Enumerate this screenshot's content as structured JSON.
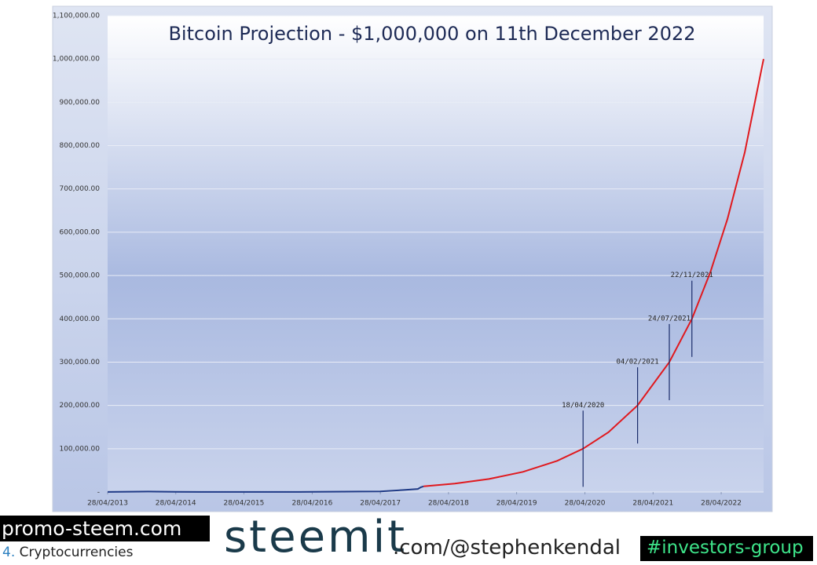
{
  "chart_data": {
    "type": "line",
    "title": "Bitcoin Projection  - $1,000,000 on 11th December 2022",
    "xlim": [
      "2013-04-28",
      "2022-12-11"
    ],
    "xticks": [
      {
        "value": "2013-04-28",
        "label": "28/04/2013"
      },
      {
        "value": "2014-04-28",
        "label": "28/04/2014"
      },
      {
        "value": "2015-04-28",
        "label": "28/04/2015"
      },
      {
        "value": "2016-04-28",
        "label": "28/04/2016"
      },
      {
        "value": "2017-04-28",
        "label": "28/04/2017"
      },
      {
        "value": "2018-04-28",
        "label": "28/04/2018"
      },
      {
        "value": "2019-04-28",
        "label": "28/04/2019"
      },
      {
        "value": "2020-04-28",
        "label": "28/04/2020"
      },
      {
        "value": "2021-04-28",
        "label": "28/04/2021"
      },
      {
        "value": "2022-04-28",
        "label": "28/04/2022"
      }
    ],
    "ylim": [
      0,
      1100000
    ],
    "yticks": [
      {
        "value": 0,
        "label": "-"
      },
      {
        "value": 100000,
        "label": "100,000.00"
      },
      {
        "value": 200000,
        "label": "200,000.00"
      },
      {
        "value": 300000,
        "label": "300,000.00"
      },
      {
        "value": 400000,
        "label": "400,000.00"
      },
      {
        "value": 500000,
        "label": "500,000.00"
      },
      {
        "value": 600000,
        "label": "600,000.00"
      },
      {
        "value": 700000,
        "label": "700,000.00"
      },
      {
        "value": 800000,
        "label": "800,000.00"
      },
      {
        "value": 900000,
        "label": "900,000.00"
      },
      {
        "value": 1000000,
        "label": "1,000,000.00"
      },
      {
        "value": 1100000,
        "label": "1,100,000.00"
      }
    ],
    "grid": true,
    "series": [
      {
        "color": "#1f3a86",
        "x": [
          "2013-04-28",
          "2013-12-01",
          "2014-04-28",
          "2015-04-28",
          "2016-04-28",
          "2017-01-01",
          "2017-04-28",
          "2017-09-01",
          "2017-11-15",
          "2017-12-01",
          "2017-12-15"
        ],
        "values": [
          130,
          1000,
          450,
          230,
          450,
          1000,
          1300,
          4700,
          7000,
          11000,
          13100
        ]
      },
      {
        "color": "#e0191e",
        "x": [
          "2017-12-15",
          "2018-06-01",
          "2018-12-01",
          "2019-06-01",
          "2019-12-01",
          "2020-04-18",
          "2020-09-01",
          "2021-02-04",
          "2021-07-24",
          "2021-11-22",
          "2022-03-01",
          "2022-06-01",
          "2022-09-01",
          "2022-12-11"
        ],
        "values": [
          13100,
          19500,
          30100,
          46600,
          71900,
          100000,
          138000,
          200000,
          300000,
          400000,
          508000,
          631000,
          784000,
          1000000
        ]
      }
    ],
    "annotations": [
      {
        "label": "18/04/2020",
        "x": "2020-04-18",
        "value": 100000
      },
      {
        "label": "04/02/2021",
        "x": "2021-02-04",
        "value": 200000
      },
      {
        "label": "24/07/2021",
        "x": "2021-07-24",
        "value": 300000
      },
      {
        "label": "22/11/2021",
        "x": "2021-11-22",
        "value": 400000
      }
    ]
  },
  "footer": {
    "site": "promo-steem.com",
    "number": "4.",
    "category": "Cryptocurrencies",
    "brand": "steemit",
    "handle": ".com/@stephenkendal",
    "tag": "#investors-group"
  }
}
